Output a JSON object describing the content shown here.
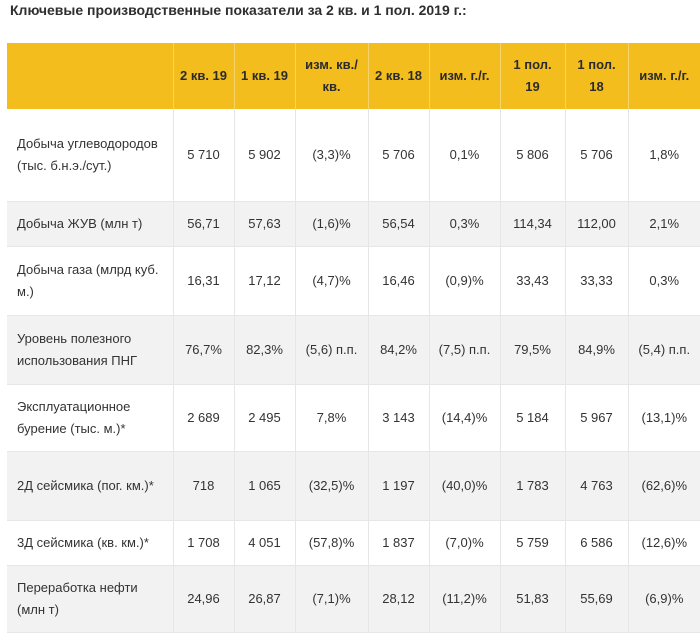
{
  "title": "Ключевые производственные показатели за 2 кв. и 1 пол. 2019 г.:",
  "table": {
    "headers": [
      "",
      "2 кв. 19",
      "1 кв. 19",
      "изм. кв./кв.",
      "2 кв. 18",
      "изм. г./г.",
      "1 пол. 19",
      "1 пол. 18",
      "изм. г./г."
    ],
    "rows": [
      {
        "label": "Добыча углеводородов (тыс. б.н.э./сут.)",
        "cells": [
          "5 710",
          "5 902",
          "(3,3)%",
          "5 706",
          "0,1%",
          "5 806",
          "5 706",
          "1,8%"
        ]
      },
      {
        "label": "Добыча ЖУВ (млн т)",
        "cells": [
          "56,71",
          "57,63",
          "(1,6)%",
          "56,54",
          "0,3%",
          "114,34",
          "112,00",
          "2,1%"
        ]
      },
      {
        "label": "Добыча газа (млрд куб. м.)",
        "cells": [
          "16,31",
          "17,12",
          "(4,7)%",
          "16,46",
          "(0,9)%",
          "33,43",
          "33,33",
          "0,3%"
        ]
      },
      {
        "label": "Уровень полезного использования ПНГ",
        "cells": [
          "76,7%",
          "82,3%",
          "(5,6) п.п.",
          "84,2%",
          "(7,5) п.п.",
          "79,5%",
          "84,9%",
          "(5,4) п.п."
        ]
      },
      {
        "label": "Эксплуатационное бурение (тыс. м.)*",
        "cells": [
          "2 689",
          "2 495",
          "7,8%",
          "3 143",
          "(14,4)%",
          "5 184",
          "5 967",
          "(13,1)%"
        ]
      },
      {
        "label": "2Д сейсмика (пог. км.)*",
        "cells": [
          "718",
          "1 065",
          "(32,5)%",
          "1 197",
          "(40,0)%",
          "1 783",
          "4 763",
          "(62,6)%"
        ]
      },
      {
        "label": "3Д сейсмика (кв. км.)*",
        "cells": [
          "1 708",
          "4 051",
          "(57,8)%",
          "1 837",
          "(7,0)%",
          "5 759",
          "6 586",
          "(12,6)%"
        ]
      },
      {
        "label": "Переработка нефти (млн т)",
        "cells": [
          "24,96",
          "26,87",
          "(7,1)%",
          "28,12",
          "(11,2)%",
          "51,83",
          "55,69",
          "(6,9)%"
        ]
      }
    ]
  },
  "colors": {
    "header_bg": "#f3bd1d",
    "stripe_bg": "#f2f2f2",
    "grid_line": "#e6e6e6"
  }
}
